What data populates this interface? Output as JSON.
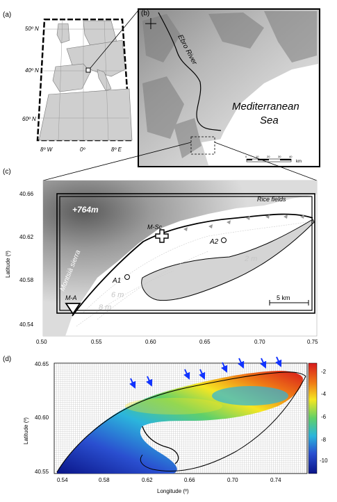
{
  "panel_a": {
    "label": "(a)",
    "lat_labels": [
      "50º N",
      "40º N",
      "60º N"
    ],
    "lon_labels": [
      "8º W",
      "0º",
      "8º E"
    ]
  },
  "panel_b": {
    "label": "(b)",
    "river_label": "Ebro River",
    "sea_label_1": "Mediterranean",
    "sea_label_2": "Sea",
    "scale_ticks": [
      "0",
      "10",
      "20",
      "30",
      "40"
    ],
    "scale_unit": "km"
  },
  "panel_c": {
    "label": "(c)",
    "y_ticks": [
      "40.66",
      "40.62",
      "40.58",
      "40.54"
    ],
    "x_ticks": [
      "0.50",
      "0.55",
      "0.60",
      "0.65",
      "0.70",
      "0.75"
    ],
    "ylabel": "Latitude (º)",
    "elevation_label": "+764m",
    "sierra_label": "Montsià sierra",
    "rice_label": "Rice fields",
    "stations": [
      "M-Sc",
      "A2",
      "A1",
      "M-A"
    ],
    "contours": [
      "2 m",
      "6 m",
      "8 m"
    ],
    "scale_label": "5  km"
  },
  "panel_d": {
    "label": "(d)",
    "y_ticks": [
      "40.65",
      "40.60",
      "40.55"
    ],
    "x_ticks": [
      "0.54",
      "0.58",
      "0.62",
      "0.66",
      "0.70",
      "0.74"
    ],
    "ylabel": "Latitude (º)",
    "xlabel": "Longitude  (º)",
    "colorbar_ticks": [
      "-2",
      "-4",
      "-6",
      "-8",
      "-10"
    ],
    "colorbar_colors": [
      "#d7191c",
      "#f07c16",
      "#f5e622",
      "#5fd06a",
      "#2bb5dc",
      "#2a4fd0",
      "#0a1588"
    ]
  },
  "arrow_color": "#1133ff"
}
